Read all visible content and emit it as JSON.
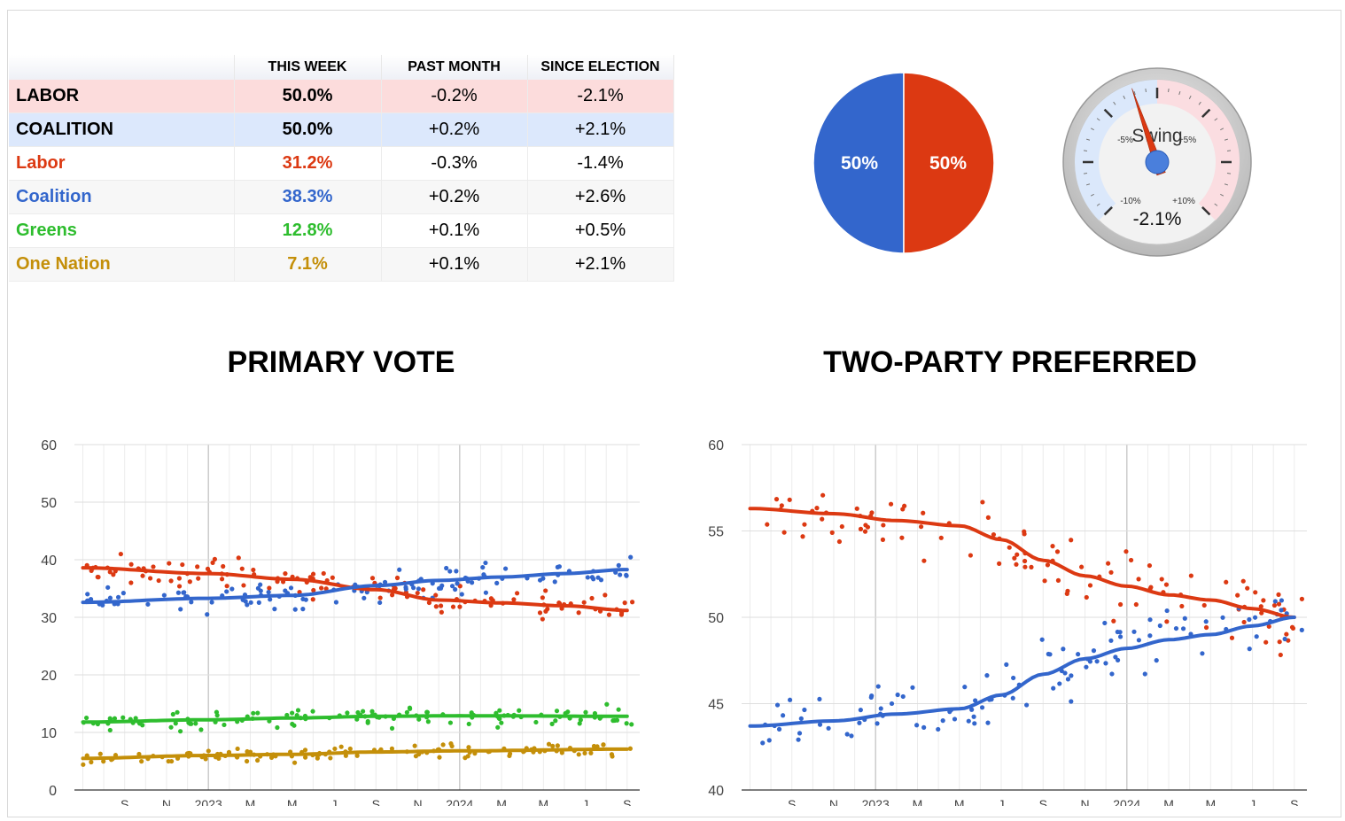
{
  "colors": {
    "labor": "#dc3912",
    "coalition": "#3366cc",
    "greens": "#2ebd2e",
    "one_nation": "#c48f09"
  },
  "table": {
    "headers": [
      "",
      "THIS WEEK",
      "PAST MONTH",
      "SINCE ELECTION"
    ],
    "rows": [
      {
        "party": "LABOR",
        "this_week": "50.0%",
        "past_month": "-0.2%",
        "since_election": "-2.1%"
      },
      {
        "party": "COALITION",
        "this_week": "50.0%",
        "past_month": "+0.2%",
        "since_election": "+2.1%"
      },
      {
        "party": "Labor",
        "this_week": "31.2%",
        "past_month": "-0.3%",
        "since_election": "-1.4%"
      },
      {
        "party": "Coalition",
        "this_week": "38.3%",
        "past_month": "+0.2%",
        "since_election": "+2.6%"
      },
      {
        "party": "Greens",
        "this_week": "12.8%",
        "past_month": "+0.1%",
        "since_election": "+0.5%"
      },
      {
        "party": "One Nation",
        "this_week": "7.1%",
        "past_month": "+0.1%",
        "since_election": "+2.1%"
      }
    ]
  },
  "gauge": {
    "label": "Swing",
    "value": -2.1,
    "value_text": "-2.1%",
    "min": -15,
    "max": 15,
    "tick_labels": [
      "-10%",
      "-5%",
      "+5%",
      "+10%"
    ]
  },
  "titles": {
    "primary": "PRIMARY VOTE",
    "tpp": "TWO-PARTY PREFERRED"
  },
  "chart_data": [
    {
      "type": "pie",
      "labels": [
        "Coalition",
        "Labor"
      ],
      "values": [
        50,
        50
      ],
      "value_labels": [
        "50%",
        "50%"
      ]
    },
    {
      "type": "scatter",
      "title": "PRIMARY VOTE",
      "x_tick_labels": [
        "S",
        "N",
        "2023",
        "M",
        "M",
        "J",
        "S",
        "N",
        "2024",
        "M",
        "M",
        "J",
        "S"
      ],
      "x_tick_months": [
        1,
        3,
        5,
        7,
        9,
        11,
        13,
        15,
        17,
        19,
        21,
        23,
        25
      ],
      "year_boundaries": [
        5,
        17
      ],
      "xlim": [
        -1.4,
        25.6
      ],
      "ylim": [
        0,
        60
      ],
      "y_ticks": [
        0,
        10,
        20,
        30,
        40,
        50,
        60
      ],
      "series": [
        {
          "name": "Labor",
          "trend": [
            [
              -1,
              38.6
            ],
            [
              5,
              37.6
            ],
            [
              9,
              36.6
            ],
            [
              13,
              34.8
            ],
            [
              16,
              33.0
            ],
            [
              19,
              32.5
            ],
            [
              22,
              32.0
            ],
            [
              25,
              31.2
            ]
          ],
          "spread": 2.2
        },
        {
          "name": "Coalition",
          "trend": [
            [
              -1,
              32.6
            ],
            [
              5,
              33.3
            ],
            [
              9,
              33.8
            ],
            [
              13,
              35.5
            ],
            [
              16,
              36.4
            ],
            [
              19,
              37.0
            ],
            [
              22,
              37.6
            ],
            [
              25,
              38.3
            ]
          ],
          "spread": 2.0
        },
        {
          "name": "Greens",
          "trend": [
            [
              -1,
              11.8
            ],
            [
              5,
              12.2
            ],
            [
              9,
              12.5
            ],
            [
              13,
              12.8
            ],
            [
              17,
              12.9
            ],
            [
              25,
              12.8
            ]
          ],
          "spread": 1.4
        },
        {
          "name": "One Nation",
          "trend": [
            [
              -1,
              5.5
            ],
            [
              5,
              6.0
            ],
            [
              9,
              6.2
            ],
            [
              13,
              6.6
            ],
            [
              17,
              6.8
            ],
            [
              25,
              7.1
            ]
          ],
          "spread": 1.0
        }
      ]
    },
    {
      "type": "scatter",
      "title": "TWO-PARTY PREFERRED",
      "x_tick_labels": [
        "S",
        "N",
        "2023",
        "M",
        "M",
        "J",
        "S",
        "N",
        "2024",
        "M",
        "M",
        "J",
        "S"
      ],
      "x_tick_months": [
        1,
        3,
        5,
        7,
        9,
        11,
        13,
        15,
        17,
        19,
        21,
        23,
        25
      ],
      "year_boundaries": [
        5,
        17
      ],
      "xlim": [
        -1.4,
        25.6
      ],
      "ylim": [
        40,
        60
      ],
      "y_ticks": [
        40,
        45,
        50,
        55,
        60
      ],
      "series": [
        {
          "name": "Labor",
          "trend": [
            [
              -1,
              56.3
            ],
            [
              3,
              56.0
            ],
            [
              6,
              55.6
            ],
            [
              9,
              55.3
            ],
            [
              11,
              54.5
            ],
            [
              13,
              53.3
            ],
            [
              15,
              52.4
            ],
            [
              17,
              51.8
            ],
            [
              19,
              51.3
            ],
            [
              21,
              51.0
            ],
            [
              23,
              50.5
            ],
            [
              25,
              50.0
            ]
          ],
          "spread": 1.5
        },
        {
          "name": "Coalition",
          "trend": [
            [
              -1,
              43.7
            ],
            [
              3,
              44.0
            ],
            [
              6,
              44.4
            ],
            [
              9,
              44.7
            ],
            [
              11,
              45.5
            ],
            [
              13,
              46.7
            ],
            [
              15,
              47.6
            ],
            [
              17,
              48.2
            ],
            [
              19,
              48.7
            ],
            [
              21,
              49.0
            ],
            [
              23,
              49.5
            ],
            [
              25,
              50.0
            ]
          ],
          "spread": 1.5
        }
      ]
    }
  ]
}
